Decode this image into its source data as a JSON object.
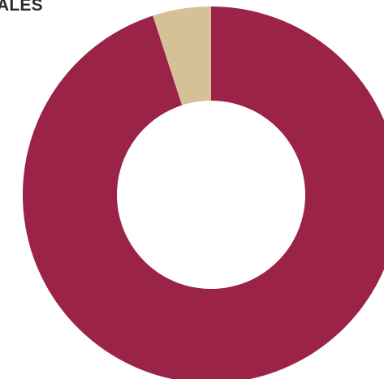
{
  "chart_data": {
    "type": "pie",
    "variant": "donut",
    "title": "ALES",
    "slices": [
      {
        "value": 95,
        "color": "#9b2347"
      },
      {
        "value": 5,
        "color": "#d5c098"
      }
    ],
    "start": "top",
    "direction": "clockwise",
    "legend": "none"
  }
}
